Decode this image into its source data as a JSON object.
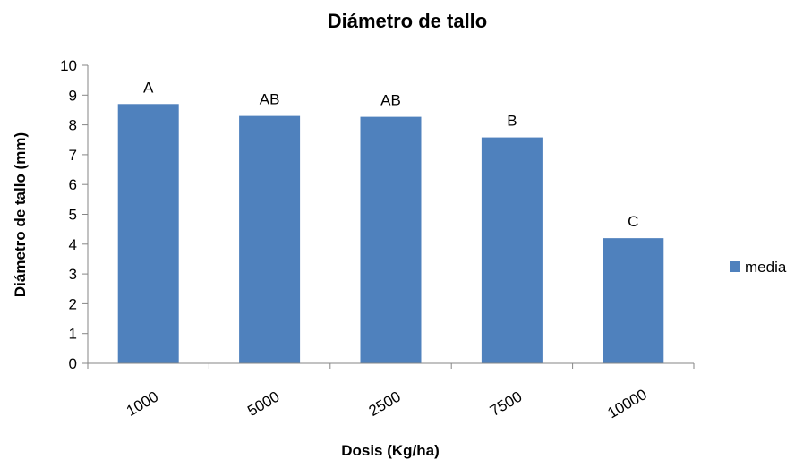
{
  "chart_data": {
    "type": "bar",
    "title": "Diámetro de tallo",
    "xlabel": "Dosis (Kg/ha)",
    "ylabel": "Diámetro de tallo (mm)",
    "categories": [
      "1000",
      "5000",
      "2500",
      "7500",
      "10000"
    ],
    "series": [
      {
        "name": "media",
        "values": [
          8.7,
          8.3,
          8.27,
          7.58,
          4.2
        ],
        "color": "#4f81bd",
        "labels": [
          "A",
          "AB",
          "AB",
          "B",
          "C"
        ]
      }
    ],
    "ylim": [
      0,
      10
    ],
    "yticks": [
      "0",
      "1",
      "2",
      "3",
      "4",
      "5",
      "6",
      "7",
      "8",
      "9",
      "10"
    ],
    "grid": false,
    "legend_position": "right"
  }
}
